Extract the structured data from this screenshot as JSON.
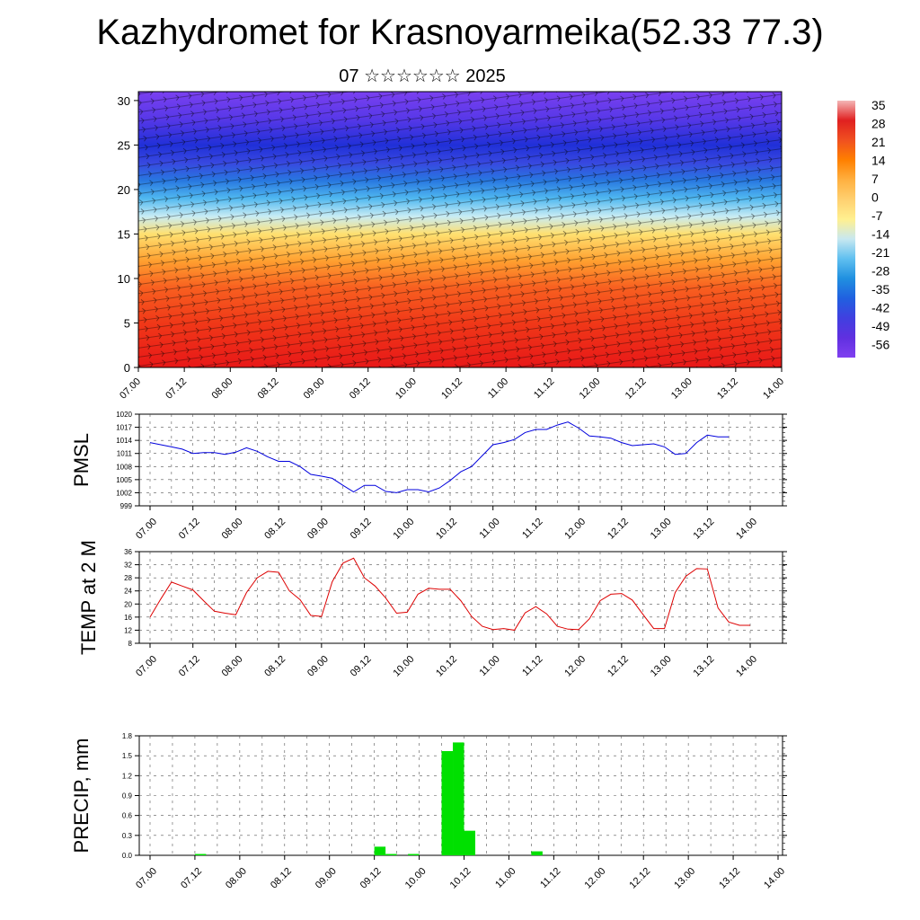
{
  "header": {
    "title": "Kazhydromet for Krasnoyarmeika(52.33 77.3)",
    "subtitle": "07 ☆☆☆☆☆☆ 2025"
  },
  "chart_data": [
    {
      "type": "heatmap",
      "title": "",
      "x_ticks": [
        "07.00",
        "07.12",
        "08.00",
        "08.12",
        "09.00",
        "09.12",
        "10.00",
        "10.12",
        "11.00",
        "11.12",
        "12.00",
        "12.12",
        "13.00",
        "13.12",
        "14.00"
      ],
      "y_ticks": [
        0,
        5,
        10,
        15,
        20,
        25,
        30
      ],
      "ylim": [
        0,
        31
      ],
      "colorbar": {
        "labels": [
          "35",
          "28",
          "21",
          "14",
          "7",
          "0",
          "-7",
          "-14",
          "-21",
          "-28",
          "-35",
          "-42",
          "-49",
          "-56"
        ],
        "colors": [
          "#f4b6b6",
          "#e02020",
          "#f05020",
          "#ff8000",
          "#ffb040",
          "#ffd070",
          "#fff090",
          "#c8e8f0",
          "#60c0f0",
          "#2090e0",
          "#2060e0",
          "#4040e0",
          "#6030e0",
          "#8040f0"
        ]
      },
      "profile": [
        {
          "h": 0,
          "c": "#e81818"
        },
        {
          "h": 5,
          "c": "#f03818"
        },
        {
          "h": 9,
          "c": "#f86020"
        },
        {
          "h": 12,
          "c": "#ffa030"
        },
        {
          "h": 15,
          "c": "#ffe070"
        },
        {
          "h": 17,
          "c": "#c8ecf4"
        },
        {
          "h": 19,
          "c": "#50b8f0"
        },
        {
          "h": 21,
          "c": "#2878e0"
        },
        {
          "h": 23,
          "c": "#3848e0"
        },
        {
          "h": 25,
          "c": "#2030d8"
        },
        {
          "h": 28,
          "c": "#5838e8"
        },
        {
          "h": 31,
          "c": "#7a40f0"
        }
      ]
    },
    {
      "type": "line",
      "ylabel": "PMSL",
      "color": "#0000dd",
      "ylim": [
        999,
        1020
      ],
      "y_ticks": [
        999,
        1002,
        1005,
        1008,
        1011,
        1014,
        1017,
        1020
      ],
      "x_ticks": [
        "07.00",
        "07.12",
        "08.00",
        "08.12",
        "09.00",
        "09.12",
        "10.00",
        "10.12",
        "11.00",
        "11.12",
        "12.00",
        "12.12",
        "13.00",
        "13.12",
        "14.00"
      ],
      "x_hours": [
        0,
        3,
        6,
        9,
        12,
        15,
        18,
        21,
        24,
        27,
        30,
        33,
        36,
        39,
        42,
        45,
        48,
        51,
        54,
        57,
        60,
        63,
        66,
        69,
        72,
        75,
        78,
        81,
        84,
        87,
        90,
        93,
        96,
        99,
        102,
        105,
        108,
        111,
        114,
        117,
        120,
        123,
        126,
        129,
        132,
        135,
        138,
        141,
        144,
        147,
        150,
        153,
        156,
        159,
        162,
        165,
        168
      ],
      "values": [
        1013.5,
        1013,
        1012.5,
        1012,
        1011,
        1011.2,
        1011.2,
        1010.8,
        1011.3,
        1012.3,
        1011.5,
        1010.2,
        1009.2,
        1009.2,
        1008,
        1006.2,
        1005.8,
        1005.3,
        1003.7,
        1002.2,
        1003.7,
        1003.7,
        1002.3,
        1002,
        1002.7,
        1002.7,
        1002.2,
        1003.1,
        1004.8,
        1006.8,
        1008,
        1010.5,
        1013,
        1013.5,
        1014.2,
        1015.8,
        1016.5,
        1016.5,
        1017.5,
        1018.2,
        1016.8,
        1015,
        1014.8,
        1014.5,
        1013.5,
        1012.8,
        1013,
        1013.2,
        1012.5,
        1010.8,
        1011,
        1013.5,
        1015.2,
        1014.8,
        1014.8,
        null,
        null
      ]
    },
    {
      "type": "line",
      "ylabel": "TEMP at 2 M",
      "color": "#dd0000",
      "ylim": [
        8,
        36
      ],
      "y_ticks": [
        8,
        12,
        16,
        20,
        24,
        28,
        32,
        36
      ],
      "x_ticks": [
        "07.00",
        "07.12",
        "08.00",
        "08.12",
        "09.00",
        "09.12",
        "10.00",
        "10.12",
        "11.00",
        "11.12",
        "12.00",
        "12.12",
        "13.00",
        "13.12",
        "14.00"
      ],
      "x_hours": [
        0,
        3,
        6,
        9,
        12,
        15,
        18,
        21,
        24,
        27,
        30,
        33,
        36,
        39,
        42,
        45,
        48,
        51,
        54,
        57,
        60,
        63,
        66,
        69,
        72,
        75,
        78,
        81,
        84,
        87,
        90,
        93,
        96,
        99,
        102,
        105,
        108,
        111,
        114,
        117,
        120,
        123,
        126,
        129,
        132,
        135,
        138,
        141,
        144,
        147,
        150,
        153,
        156,
        159,
        162,
        165,
        168
      ],
      "values": [
        16,
        21.5,
        26.7,
        25.5,
        24.3,
        21,
        17.8,
        17.2,
        16.7,
        23.5,
        28,
        30,
        29.7,
        24,
        21.3,
        16.5,
        16.2,
        26.8,
        32.5,
        34,
        28,
        25.5,
        21.8,
        17.2,
        17.5,
        23,
        24.8,
        24.5,
        24.5,
        21,
        16.2,
        13.2,
        12.2,
        12.5,
        12,
        17.3,
        19.2,
        17,
        13.2,
        12.3,
        12.2,
        15.5,
        21,
        23,
        23.2,
        21.2,
        16.8,
        12.5,
        12.5,
        23.5,
        28.5,
        30.8,
        30.7,
        18.8,
        14.5,
        13.5,
        13.5
      ]
    },
    {
      "type": "bar",
      "ylabel": "PRECIP, mm",
      "color": "#00e000",
      "ylim": [
        0,
        1.8
      ],
      "y_ticks": [
        "0.0",
        "0.3",
        "0.6",
        "0.9",
        "1.2",
        "1.5",
        "1.8"
      ],
      "x_ticks": [
        "07.00",
        "07.12",
        "08.00",
        "08.12",
        "09.00",
        "09.12",
        "10.00",
        "10.12",
        "11.00",
        "11.12",
        "12.00",
        "12.12",
        "13.00",
        "13.12",
        "14.00"
      ],
      "bars": [
        {
          "hour": 13.5,
          "value": 0.02
        },
        {
          "hour": 61.5,
          "value": 0.13
        },
        {
          "hour": 64.5,
          "value": 0.02
        },
        {
          "hour": 70.5,
          "value": 0.02
        },
        {
          "hour": 79.5,
          "value": 1.57
        },
        {
          "hour": 82.5,
          "value": 1.7
        },
        {
          "hour": 85.5,
          "value": 0.37
        },
        {
          "hour": 103.5,
          "value": 0.06
        }
      ]
    }
  ]
}
